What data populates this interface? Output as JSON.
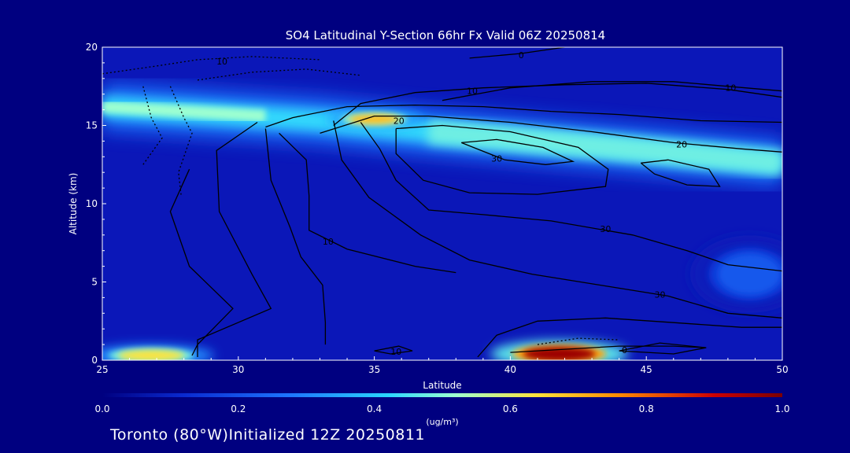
{
  "colors": {
    "background": "#000080",
    "plot_base": "#0b17b8",
    "colormap": [
      "#000080",
      "#0a2ad0",
      "#1e78ff",
      "#2ad6ff",
      "#9effd0",
      "#ffe23a",
      "#ff8a00",
      "#cc0000",
      "#7a0000"
    ]
  },
  "footer": {
    "text": "Toronto (80°W)Initialized 12Z 20250811"
  },
  "chart_data": {
    "type": "heatmap",
    "title": "SO4 Latitudinal Y-Section 66hr  Fx Valid 06Z 20250814",
    "xlabel": "Latitude",
    "ylabel": "Altitude (km)",
    "xlim": [
      25,
      50
    ],
    "ylim": [
      0,
      20
    ],
    "xticks": [
      25,
      30,
      35,
      40,
      45,
      50
    ],
    "yticks": [
      0,
      5,
      10,
      15,
      20
    ],
    "colorbar": {
      "min": 0.0,
      "max": 1.0,
      "ticks": [
        0.0,
        0.2,
        0.4,
        0.6,
        0.8,
        1.0
      ],
      "tick_labels": [
        "0.0",
        "0.2",
        "0.4",
        "0.6",
        "0.8",
        "1.0"
      ],
      "unit": "(ug/m³)"
    },
    "field_features": [
      {
        "name": "upper-layer-band",
        "lat": [
          25,
          50
        ],
        "alt_center": [
          16.2,
          15.3,
          14.6,
          13.4,
          12.6
        ],
        "band_lats": [
          25,
          33,
          37,
          45,
          50
        ],
        "peak": 0.45
      },
      {
        "name": "tropopause-maximum",
        "lat": 35,
        "alt": 15.4,
        "peak": 0.68
      },
      {
        "name": "surface-maximum-south",
        "lat": 26.8,
        "alt": 0.3,
        "peak": 0.62
      },
      {
        "name": "surface-maximum-north",
        "lat": 41.8,
        "alt": 0.4,
        "peak": 0.95
      },
      {
        "name": "mid-level-patch",
        "lat": 48.8,
        "alt": 5.5,
        "peak": 0.2
      }
    ],
    "contours": [
      {
        "level": 0,
        "style": "solid",
        "label_text": "0",
        "label_at": [
          40.4,
          19.5
        ],
        "points": [
          [
            38.5,
            19.3
          ],
          [
            40.4,
            19.6
          ],
          [
            42,
            20
          ]
        ]
      },
      {
        "level": 10,
        "style": "solid",
        "label_text": "10",
        "label_at": [
          38.6,
          17.2
        ],
        "points": [
          [
            33.5,
            15.0
          ],
          [
            34.5,
            16.4
          ],
          [
            36.5,
            17.1
          ],
          [
            39,
            17.4
          ],
          [
            42,
            17.6
          ],
          [
            45,
            17.7
          ],
          [
            48,
            17.3
          ],
          [
            50,
            16.8
          ]
        ]
      },
      {
        "level": 10,
        "style": "solid",
        "label_text": "10",
        "label_at": [
          48.1,
          17.4
        ],
        "points": [
          [
            37.5,
            16.6
          ],
          [
            40,
            17.4
          ],
          [
            43,
            17.8
          ],
          [
            46,
            17.8
          ],
          [
            48,
            17.5
          ],
          [
            50,
            17.2
          ]
        ]
      },
      {
        "level": 20,
        "style": "solid",
        "label_text": "20",
        "label_at": [
          35.9,
          15.3
        ],
        "points": [
          [
            31,
            14.9
          ],
          [
            32,
            15.5
          ],
          [
            34,
            16.2
          ],
          [
            36.5,
            16.3
          ],
          [
            39,
            16.2
          ],
          [
            41.5,
            15.9
          ],
          [
            44,
            15.7
          ],
          [
            47,
            15.3
          ],
          [
            50,
            15.2
          ]
        ]
      },
      {
        "level": 20,
        "style": "solid",
        "label_text": "20",
        "label_at": [
          46.3,
          13.8
        ],
        "points": [
          [
            33,
            14.5
          ],
          [
            35,
            15.6
          ],
          [
            37,
            15.6
          ],
          [
            40,
            15.2
          ],
          [
            43,
            14.6
          ],
          [
            46,
            13.9
          ],
          [
            48.5,
            13.5
          ],
          [
            50,
            13.3
          ]
        ]
      },
      {
        "level": 30,
        "style": "solid",
        "label_text": "30",
        "label_at": [
          39.5,
          12.9
        ],
        "points": [
          [
            38.2,
            13.9
          ],
          [
            39.5,
            14.1
          ],
          [
            41.2,
            13.6
          ],
          [
            42.3,
            12.7
          ],
          [
            41.3,
            12.5
          ],
          [
            39.8,
            12.8
          ],
          [
            38.2,
            13.9
          ]
        ]
      },
      {
        "level": 30,
        "style": "solid",
        "label_text": "",
        "points": [
          [
            44.8,
            12.6
          ],
          [
            45.8,
            12.8
          ],
          [
            47.3,
            12.2
          ],
          [
            47.7,
            11.1
          ],
          [
            46.5,
            11.2
          ],
          [
            45.3,
            11.9
          ],
          [
            44.8,
            12.6
          ]
        ]
      },
      {
        "level": 30,
        "style": "solid",
        "label_text": "",
        "points": [
          [
            35.8,
            14.8
          ],
          [
            37.5,
            15.0
          ],
          [
            40,
            14.6
          ],
          [
            42.5,
            13.6
          ],
          [
            43.6,
            12.2
          ],
          [
            43.5,
            11.1
          ],
          [
            41,
            10.6
          ],
          [
            38.5,
            10.7
          ],
          [
            36.8,
            11.5
          ],
          [
            35.8,
            13.2
          ],
          [
            35.8,
            14.8
          ]
        ]
      },
      {
        "level": 30,
        "style": "solid",
        "label_text": "30",
        "label_at": [
          43.5,
          8.4
        ],
        "points": [
          [
            34.5,
            15.2
          ],
          [
            35.2,
            13.5
          ],
          [
            35.8,
            11.5
          ],
          [
            37,
            9.6
          ],
          [
            39,
            9.3
          ],
          [
            41.5,
            8.9
          ],
          [
            44.5,
            8.0
          ],
          [
            46.5,
            7.0
          ],
          [
            48,
            6.1
          ],
          [
            50,
            5.7
          ]
        ]
      },
      {
        "level": 30,
        "style": "solid",
        "label_text": "30",
        "label_at": [
          45.5,
          4.2
        ],
        "points": [
          [
            33.5,
            15.3
          ],
          [
            33.8,
            12.8
          ],
          [
            34.8,
            10.4
          ],
          [
            36.7,
            8.0
          ],
          [
            38.5,
            6.4
          ],
          [
            40.8,
            5.5
          ],
          [
            43.3,
            4.8
          ],
          [
            45.8,
            4.1
          ],
          [
            48,
            3.0
          ],
          [
            50,
            2.7
          ]
        ]
      },
      {
        "level": 10,
        "style": "solid",
        "label_text": "10",
        "label_at": [
          33.3,
          7.6
        ],
        "points": [
          [
            31.5,
            14.5
          ],
          [
            32.5,
            12.8
          ],
          [
            32.6,
            10.5
          ],
          [
            32.6,
            8.3
          ],
          [
            34,
            7.1
          ],
          [
            36.5,
            6.0
          ],
          [
            38,
            5.6
          ]
        ]
      },
      {
        "level": 10,
        "style": "solid",
        "label_text": "",
        "points": [
          [
            31,
            14.8
          ],
          [
            31.2,
            11.5
          ],
          [
            31.9,
            8.5
          ],
          [
            32.3,
            6.6
          ],
          [
            33.1,
            4.8
          ],
          [
            33.2,
            2.4
          ],
          [
            33.2,
            1.0
          ]
        ]
      },
      {
        "level": 10,
        "style": "solid",
        "label_text": "",
        "points": [
          [
            30.7,
            15.2
          ],
          [
            29.2,
            13.4
          ],
          [
            29.3,
            9.5
          ],
          [
            30.5,
            5.5
          ],
          [
            31.2,
            3.3
          ],
          [
            28.5,
            1.3
          ],
          [
            28.5,
            0.2
          ]
        ]
      },
      {
        "level": 10,
        "style": "solid",
        "label_text": "",
        "points": [
          [
            28.2,
            12.2
          ],
          [
            27.5,
            9.5
          ],
          [
            28.2,
            6.0
          ],
          [
            29.8,
            3.3
          ],
          [
            28.5,
            1.0
          ],
          [
            28.3,
            0.3
          ]
        ]
      },
      {
        "level": 10,
        "style": "solid",
        "label_text": "10",
        "label_at": [
          35.8,
          0.55
        ],
        "points": [
          [
            35,
            0.6
          ],
          [
            35.9,
            0.9
          ],
          [
            36.4,
            0.6
          ],
          [
            35.6,
            0.4
          ],
          [
            35,
            0.6
          ]
        ]
      },
      {
        "level": 10,
        "style": "solid",
        "label_text": "",
        "points": [
          [
            38.8,
            0.2
          ],
          [
            39.5,
            1.6
          ],
          [
            41,
            2.5
          ],
          [
            43.5,
            2.7
          ],
          [
            46,
            2.4
          ],
          [
            48.5,
            2.1
          ],
          [
            50,
            2.1
          ]
        ]
      },
      {
        "level": 0,
        "style": "solid",
        "label_text": "0",
        "label_at": [
          44.2,
          0.65
        ],
        "points": [
          [
            40,
            0.5
          ],
          [
            42,
            0.7
          ],
          [
            44,
            0.9
          ],
          [
            46,
            0.9
          ],
          [
            47.2,
            0.8
          ]
        ]
      },
      {
        "level": 0,
        "style": "solid",
        "label_text": "",
        "points": [
          [
            44,
            0.6
          ],
          [
            45.5,
            1.1
          ],
          [
            47.2,
            0.8
          ],
          [
            46,
            0.4
          ],
          [
            44,
            0.6
          ]
        ]
      },
      {
        "level": 10,
        "style": "dotted",
        "label_text": "10",
        "label_at": [
          29.4,
          19.1
        ],
        "points": [
          [
            25,
            18.3
          ],
          [
            27,
            18.8
          ],
          [
            28.5,
            19.2
          ],
          [
            30.5,
            19.4
          ],
          [
            33,
            19.2
          ]
        ]
      },
      {
        "level": 10,
        "style": "dotted",
        "label_text": "",
        "points": [
          [
            27.5,
            17.5
          ],
          [
            28,
            15.5
          ],
          [
            28.3,
            14.5
          ],
          [
            27.8,
            12.0
          ],
          [
            27.9,
            10.5
          ]
        ]
      },
      {
        "level": 10,
        "style": "dotted",
        "label_text": "",
        "points": [
          [
            26.5,
            17.5
          ],
          [
            26.8,
            15.5
          ],
          [
            27.2,
            14.2
          ],
          [
            26.5,
            12.5
          ]
        ]
      },
      {
        "level": 10,
        "style": "dotted",
        "label_text": "",
        "points": [
          [
            28.5,
            17.9
          ],
          [
            30.5,
            18.4
          ],
          [
            32.5,
            18.6
          ],
          [
            34.5,
            18.2
          ]
        ]
      },
      {
        "level": 10,
        "style": "dotted",
        "label_text": "",
        "points": [
          [
            41,
            1.0
          ],
          [
            42.5,
            1.4
          ],
          [
            44,
            1.3
          ]
        ]
      }
    ]
  }
}
